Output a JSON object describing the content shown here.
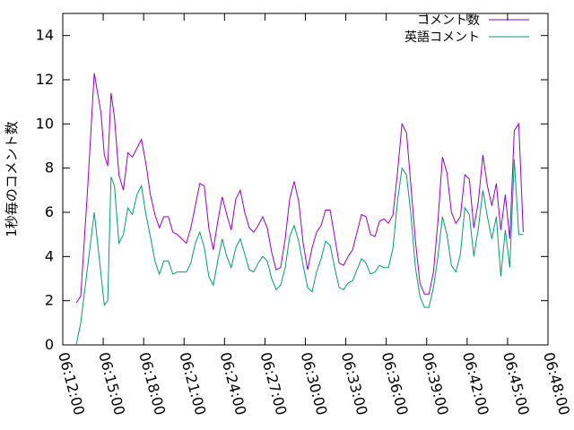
{
  "chart_data": {
    "type": "line",
    "ylabel": "1秒毎のコメント数",
    "xlabel": "",
    "ylim": [
      0,
      15
    ],
    "xlim": [
      "06:12:00",
      "06:48:00"
    ],
    "y_ticks": [
      "0",
      "2",
      "4",
      "6",
      "8",
      "10",
      "12",
      "14"
    ],
    "x_ticks": [
      "06:12:00",
      "06:15:00",
      "06:18:00",
      "06:21:00",
      "06:24:00",
      "06:27:00",
      "06:30:00",
      "06:33:00",
      "06:36:00",
      "06:39:00",
      "06:42:00",
      "06:45:00",
      "06:48:00"
    ],
    "legend_position": "top-right",
    "grid": false,
    "series": [
      {
        "name": "コメント数",
        "color": "#9400d3",
        "x": [
          "06:13:00",
          "06:13:20",
          "06:13:50",
          "06:14:20",
          "06:14:50",
          "06:15:05",
          "06:15:20",
          "06:15:35",
          "06:15:50",
          "06:16:10",
          "06:16:30",
          "06:16:50",
          "06:17:10",
          "06:17:30",
          "06:17:50",
          "06:18:10",
          "06:18:30",
          "06:18:50",
          "06:19:10",
          "06:19:30",
          "06:19:50",
          "06:20:10",
          "06:20:30",
          "06:20:50",
          "06:21:10",
          "06:21:30",
          "06:21:50",
          "06:22:10",
          "06:22:30",
          "06:22:50",
          "06:23:10",
          "06:23:30",
          "06:23:50",
          "06:24:10",
          "06:24:30",
          "06:24:50",
          "06:25:10",
          "06:25:30",
          "06:25:50",
          "06:26:10",
          "06:26:30",
          "06:26:50",
          "06:27:10",
          "06:27:30",
          "06:27:50",
          "06:28:10",
          "06:28:30",
          "06:28:50",
          "06:29:10",
          "06:29:30",
          "06:29:50",
          "06:30:10",
          "06:30:30",
          "06:30:50",
          "06:31:10",
          "06:31:30",
          "06:31:50",
          "06:32:10",
          "06:32:30",
          "06:32:50",
          "06:33:10",
          "06:33:30",
          "06:33:50",
          "06:34:10",
          "06:34:30",
          "06:34:50",
          "06:35:10",
          "06:35:30",
          "06:35:50",
          "06:36:10",
          "06:36:30",
          "06:36:50",
          "06:37:10",
          "06:37:30",
          "06:37:50",
          "06:38:10",
          "06:38:30",
          "06:38:50",
          "06:39:10",
          "06:39:30",
          "06:39:50",
          "06:40:10",
          "06:40:30",
          "06:40:50",
          "06:41:10",
          "06:41:30",
          "06:41:50",
          "06:42:10",
          "06:42:30",
          "06:42:50",
          "06:43:10",
          "06:43:30",
          "06:43:50",
          "06:44:10",
          "06:44:30",
          "06:44:50",
          "06:45:10",
          "06:45:30",
          "06:45:50",
          "06:46:10"
        ],
        "values": [
          1.9,
          2.2,
          7.0,
          12.3,
          10.5,
          8.6,
          8.1,
          11.4,
          10.3,
          7.7,
          7.0,
          8.7,
          8.5,
          8.9,
          9.3,
          8.2,
          6.8,
          5.9,
          5.3,
          5.8,
          5.8,
          5.1,
          5.0,
          4.8,
          4.6,
          5.3,
          6.3,
          7.3,
          7.2,
          5.3,
          4.3,
          5.6,
          6.7,
          5.9,
          5.2,
          6.6,
          7.0,
          6.0,
          5.3,
          5.1,
          5.4,
          5.8,
          5.3,
          4.2,
          3.4,
          3.5,
          4.8,
          6.6,
          7.4,
          6.5,
          4.6,
          3.4,
          4.4,
          5.1,
          5.4,
          6.1,
          6.1,
          4.9,
          3.7,
          3.6,
          4.0,
          4.3,
          5.1,
          5.9,
          5.8,
          5.0,
          4.9,
          5.6,
          5.7,
          5.5,
          5.9,
          7.8,
          10.0,
          9.6,
          7.2,
          4.7,
          2.8,
          2.3,
          2.3,
          3.3,
          5.6,
          8.5,
          7.8,
          6.0,
          5.5,
          5.8,
          7.7,
          7.5,
          5.3,
          6.5,
          8.6,
          7.2,
          6.3,
          7.3,
          5.2,
          6.8,
          4.8,
          9.7,
          10.0,
          5.1
        ],
        "note_values_trimmed": false
      },
      {
        "name": "英語コメント",
        "color": "#009e73",
        "x": [
          "06:13:00",
          "06:13:20",
          "06:13:50",
          "06:14:20",
          "06:14:50",
          "06:15:05",
          "06:15:20",
          "06:15:35",
          "06:15:50",
          "06:16:10",
          "06:16:30",
          "06:16:50",
          "06:17:10",
          "06:17:30",
          "06:17:50",
          "06:18:10",
          "06:18:30",
          "06:18:50",
          "06:19:10",
          "06:19:30",
          "06:19:50",
          "06:20:10",
          "06:20:30",
          "06:20:50",
          "06:21:10",
          "06:21:30",
          "06:21:50",
          "06:22:10",
          "06:22:30",
          "06:22:50",
          "06:23:10",
          "06:23:30",
          "06:23:50",
          "06:24:10",
          "06:24:30",
          "06:24:50",
          "06:25:10",
          "06:25:30",
          "06:25:50",
          "06:26:10",
          "06:26:30",
          "06:26:50",
          "06:27:10",
          "06:27:30",
          "06:27:50",
          "06:28:10",
          "06:28:30",
          "06:28:50",
          "06:29:10",
          "06:29:30",
          "06:29:50",
          "06:30:10",
          "06:30:30",
          "06:30:50",
          "06:31:10",
          "06:31:30",
          "06:31:50",
          "06:32:10",
          "06:32:30",
          "06:32:50",
          "06:33:10",
          "06:33:30",
          "06:33:50",
          "06:34:10",
          "06:34:30",
          "06:34:50",
          "06:35:10",
          "06:35:30",
          "06:35:50",
          "06:36:10",
          "06:36:30",
          "06:36:50",
          "06:37:10",
          "06:37:30",
          "06:37:50",
          "06:38:10",
          "06:38:30",
          "06:38:50",
          "06:39:10",
          "06:39:30",
          "06:39:50",
          "06:40:10",
          "06:40:30",
          "06:40:50",
          "06:41:10",
          "06:41:30",
          "06:41:50",
          "06:42:10",
          "06:42:30",
          "06:42:50",
          "06:43:10",
          "06:43:30",
          "06:43:50",
          "06:44:10",
          "06:44:30",
          "06:44:50",
          "06:45:10",
          "06:45:30",
          "06:45:50",
          "06:46:10"
        ],
        "values": [
          0.0,
          1.0,
          3.5,
          6.0,
          3.2,
          1.8,
          2.0,
          7.6,
          7.2,
          4.6,
          5.0,
          6.2,
          5.9,
          6.8,
          7.2,
          5.9,
          4.9,
          3.8,
          3.2,
          3.8,
          3.8,
          3.2,
          3.3,
          3.3,
          3.3,
          3.7,
          4.6,
          5.1,
          4.4,
          3.1,
          2.7,
          3.8,
          4.8,
          4.0,
          3.5,
          4.4,
          4.8,
          4.1,
          3.4,
          3.3,
          3.7,
          4.0,
          3.8,
          3.0,
          2.5,
          2.7,
          3.5,
          4.9,
          5.4,
          4.7,
          3.6,
          2.6,
          2.4,
          3.3,
          3.9,
          4.7,
          4.5,
          3.5,
          2.6,
          2.5,
          2.8,
          2.9,
          3.4,
          3.9,
          3.7,
          3.2,
          3.3,
          3.6,
          3.5,
          3.5,
          4.4,
          6.5,
          8.0,
          7.7,
          5.9,
          3.5,
          2.2,
          1.7,
          1.7,
          2.6,
          4.0,
          5.8,
          5.0,
          3.6,
          3.3,
          4.1,
          6.2,
          5.9,
          4.0,
          5.3,
          7.0,
          5.8,
          4.8,
          5.8,
          3.1,
          5.2,
          3.5,
          8.4,
          5.0,
          5.0
        ]
      }
    ]
  }
}
